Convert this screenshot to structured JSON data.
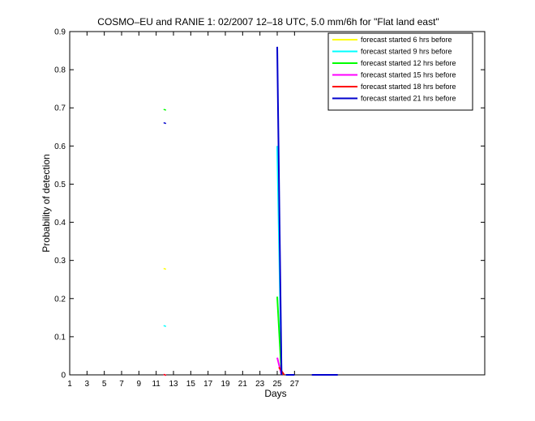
{
  "chart_data": {
    "type": "line",
    "title": "COSMO–EU and RANIE 1: 02/2007 12–18 UTC, 5.0 mm/6h for \"Flat land east\"",
    "xlabel": "Days",
    "ylabel": "Probability of detection",
    "xlim": [
      1,
      49
    ],
    "ylim": [
      0,
      0.9
    ],
    "x_ticks": [
      "1",
      "3",
      "5",
      "7",
      "9",
      "11",
      "13",
      "15",
      "17",
      "19",
      "21",
      "23",
      "25",
      "27"
    ],
    "x_tick_values": [
      1,
      3,
      5,
      7,
      9,
      11,
      13,
      15,
      17,
      19,
      21,
      23,
      25,
      27
    ],
    "y_ticks": [
      "0",
      "0.1",
      "0.2",
      "0.3",
      "0.4",
      "0.5",
      "0.6",
      "0.7",
      "0.8",
      "0.9"
    ],
    "y_tick_values": [
      0,
      0.1,
      0.2,
      0.3,
      0.4,
      0.5,
      0.6,
      0.7,
      0.8,
      0.9
    ],
    "grid": false,
    "legend_position": "top-right",
    "series": [
      {
        "name": "forecast started 6 hrs before",
        "color": "#ffff00",
        "isolated": [
          [
            12,
            0.278
          ]
        ],
        "lines": []
      },
      {
        "name": "forecast started 9 hrs before",
        "color": "#00ffff",
        "isolated": [
          [
            12,
            0.128
          ]
        ],
        "lines": [
          [
            [
              25,
              0.6
            ],
            [
              25.5,
              0.0
            ]
          ]
        ]
      },
      {
        "name": "forecast started 12 hrs before",
        "color": "#00ff00",
        "isolated": [
          [
            12,
            0.695
          ]
        ],
        "lines": [
          [
            [
              25,
              0.205
            ],
            [
              25.5,
              0.0
            ]
          ]
        ]
      },
      {
        "name": "forecast started 15 hrs before",
        "color": "#ff00ff",
        "isolated": [
          [
            12,
            0.0
          ]
        ],
        "lines": [
          [
            [
              25,
              0.045
            ],
            [
              25.5,
              0.0
            ]
          ]
        ]
      },
      {
        "name": "forecast started 18 hrs before",
        "color": "#ff0000",
        "isolated": [
          [
            12,
            0.0
          ]
        ],
        "lines": [
          [
            [
              25.2,
              0.02
            ],
            [
              25.8,
              0.0
            ]
          ]
        ]
      },
      {
        "name": "forecast started 21 hrs before",
        "color": "#0000cc",
        "isolated": [
          [
            12,
            0.66
          ]
        ],
        "lines": [
          [
            [
              25,
              0.86
            ],
            [
              25.5,
              0.0
            ]
          ],
          [
            [
              26,
              0.0
            ],
            [
              27,
              0.0
            ]
          ],
          [
            [
              29,
              0.0
            ],
            [
              32,
              0.0
            ]
          ]
        ]
      }
    ]
  }
}
